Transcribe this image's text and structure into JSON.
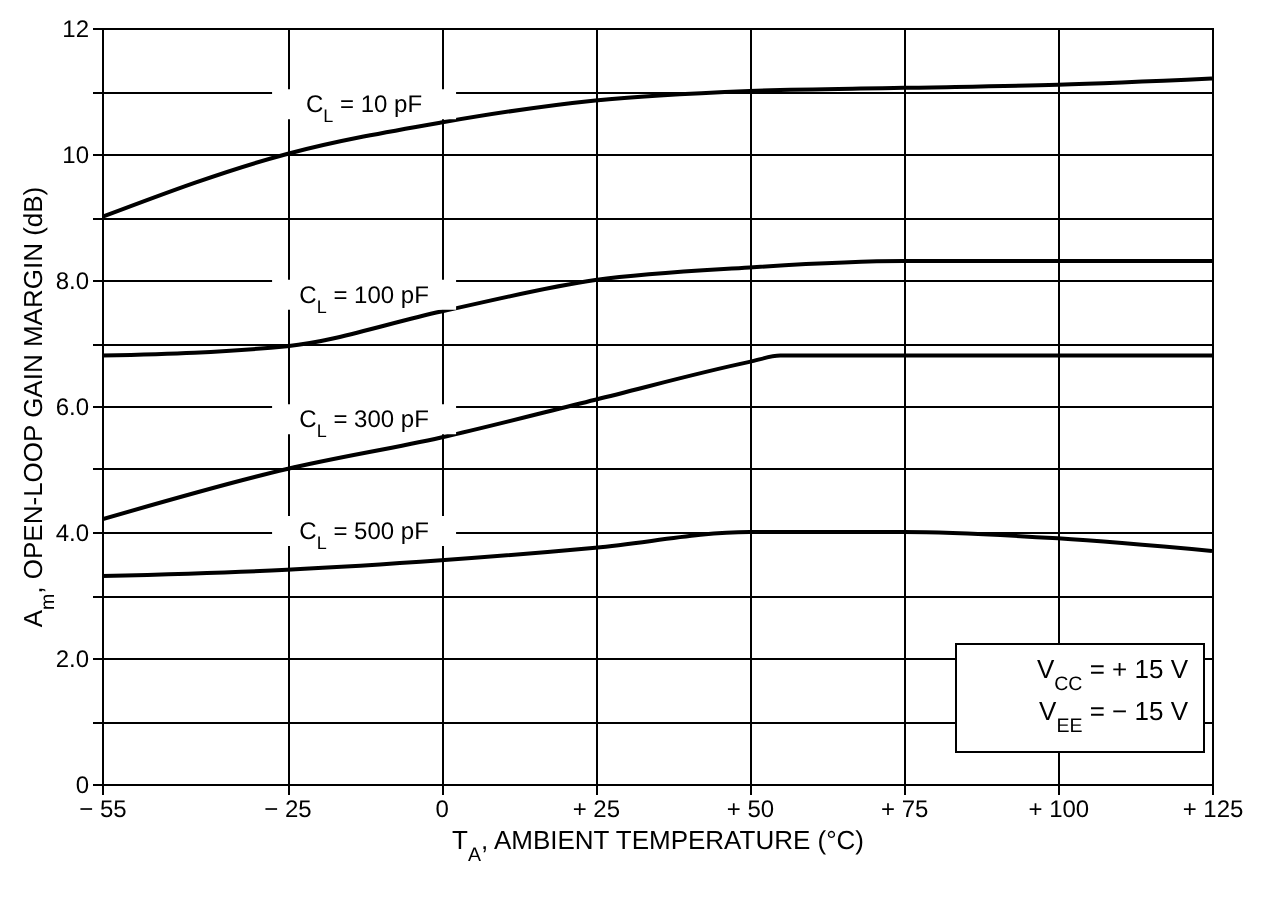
{
  "chart_data": {
    "type": "line",
    "xlabel": "T$_{A}$, AMBIENT TEMPERATURE (°C)",
    "ylabel": "A$_{m}$, OPEN-LOOP GAIN MARGIN (dB)",
    "x": [
      -55,
      -25,
      0,
      25,
      50,
      75,
      100,
      125
    ],
    "series": [
      {
        "name": "C$_{L}$ = 10 pF",
        "color": "#000000",
        "values": [
          9.0,
          10.0,
          10.5,
          10.85,
          11.0,
          11.05,
          11.1,
          11.2
        ]
      },
      {
        "name": "C$_{L}$ = 100 pF",
        "color": "#000000",
        "values": [
          6.8,
          6.95,
          7.5,
          8.0,
          8.2,
          8.3,
          8.3,
          8.3
        ]
      },
      {
        "name": "C$_{L}$ = 300 pF",
        "color": "#000000",
        "x": [
          -55,
          -25,
          0,
          25,
          50,
          55,
          75,
          100,
          125
        ],
        "values": [
          4.2,
          5.0,
          5.5,
          6.1,
          6.7,
          6.8,
          6.8,
          6.8,
          6.8
        ]
      },
      {
        "name": "C$_{L}$ = 500 pF",
        "color": "#000000",
        "values": [
          3.3,
          3.4,
          3.55,
          3.75,
          4.0,
          4.0,
          3.9,
          3.7
        ]
      }
    ],
    "xlim": [
      -55,
      125
    ],
    "xticks": [
      {
        "value": -55,
        "label": "− 55"
      },
      {
        "value": -25,
        "label": "− 25"
      },
      0,
      {
        "value": 25,
        "label": "+ 25"
      },
      {
        "value": 50,
        "label": "+ 50"
      },
      {
        "value": 75,
        "label": "+ 75"
      },
      {
        "value": 100,
        "label": "+ 100"
      },
      {
        "value": 125,
        "label": "+ 125"
      }
    ],
    "ylim": [
      0,
      12
    ],
    "yticks": [
      0,
      {
        "value": 1,
        "label": null
      },
      {
        "value": 2,
        "label": "2.0"
      },
      {
        "value": 3,
        "label": null
      },
      {
        "value": 4,
        "label": "4.0"
      },
      {
        "value": 5,
        "label": null
      },
      {
        "value": 6,
        "label": "6.0"
      },
      {
        "value": 7,
        "label": null
      },
      {
        "value": 8,
        "label": "8.0"
      },
      {
        "value": 9,
        "label": null
      },
      10,
      {
        "value": 11,
        "label": null
      },
      12
    ],
    "annotations": [
      "V$_{CC}$ = + 15 V",
      "V$_{EE}$ = − 15 V"
    ],
    "grid": true,
    "legend": false,
    "marker": "none",
    "line_style": "solid"
  }
}
